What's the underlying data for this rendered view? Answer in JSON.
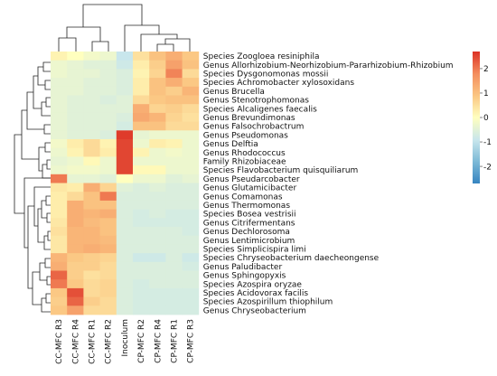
{
  "chart_data": {
    "type": "heatmap",
    "rows": [
      "Species Zoogloea resiniphila",
      "Genus Allorhizobium-Neorhizobium-Pararhizobium-Rhizobium",
      "Species Dysgonomonas mossii",
      "Species Achromobacter xylosoxidans",
      "Genus Brucella",
      "Genus Stenotrophomonas",
      "Species Alcaligenes faecalis",
      "Genus Brevundimonas",
      "Genus Falsochrobactrum",
      "Genus Pseudomonas",
      "Genus Delftia",
      "Genus Rhodococcus",
      "Family Rhizobiaceae",
      "Species Flavobacterium quisquiliarum",
      "Genus Pseudarcobacter",
      "Genus Glutamicibacter",
      "Genus Comamonas",
      "Genus Thermomonas",
      "Species Bosea vestrisii",
      "Genus Citrifermentans",
      "Genus Dechlorosoma",
      "Genus Lentimicrobium",
      "Species Simplicispira limi",
      "Species Chryseobacterium daecheongense",
      "Genus Paludibacter",
      "Genus Sphingopyxis",
      "Species Azospira oryzae",
      "Species Acidovorax facilis",
      "Species Azospirillum thiophilum",
      "Genus Chryseobacterium"
    ],
    "columns": [
      "CC-MFC R3",
      "CC-MFC R4",
      "CC-MFC R1",
      "CC-MFC R2",
      "Inoculum",
      "CP-MFC R2",
      "CP-MFC R4",
      "CP-MFC R1",
      "CP-MFC R3"
    ],
    "values": [
      [
        0.2,
        0.0,
        -0.2,
        -0.3,
        -0.9,
        0.5,
        1.0,
        1.3,
        0.9
      ],
      [
        -0.3,
        -0.4,
        -0.5,
        -0.5,
        -0.8,
        0.3,
        0.8,
        1.5,
        1.0
      ],
      [
        -0.3,
        -0.4,
        -0.4,
        -0.5,
        -0.6,
        0.2,
        0.7,
        1.9,
        0.6
      ],
      [
        -0.4,
        -0.4,
        -0.5,
        -0.5,
        -0.6,
        0.3,
        1.0,
        1.3,
        0.9
      ],
      [
        -0.4,
        -0.4,
        -0.5,
        -0.5,
        -0.6,
        0.3,
        1.0,
        0.8,
        1.2
      ],
      [
        -0.4,
        -0.5,
        -0.5,
        -0.6,
        -0.5,
        0.6,
        0.9,
        1.0,
        1.0
      ],
      [
        -0.4,
        -0.5,
        -0.5,
        -0.5,
        -0.5,
        1.3,
        0.7,
        0.8,
        0.6
      ],
      [
        -0.4,
        -0.5,
        -0.5,
        -0.5,
        -0.6,
        1.4,
        1.2,
        0.7,
        0.5
      ],
      [
        -0.4,
        -0.5,
        -0.5,
        -0.5,
        -0.7,
        1.0,
        1.0,
        0.6,
        0.6
      ],
      [
        -0.4,
        -0.5,
        -0.5,
        -0.6,
        2.6,
        -0.4,
        -0.3,
        -0.3,
        -0.3
      ],
      [
        -0.2,
        0.3,
        0.6,
        0.2,
        2.5,
        -0.3,
        0.3,
        0.2,
        -0.3
      ],
      [
        -0.3,
        0.2,
        0.6,
        0.3,
        2.5,
        0.2,
        -0.3,
        -0.2,
        -0.3
      ],
      [
        -0.4,
        -0.3,
        0.1,
        -0.3,
        2.5,
        -0.3,
        -0.3,
        -0.3,
        -0.3
      ],
      [
        -0.3,
        -0.2,
        -0.2,
        -0.3,
        2.5,
        0.1,
        0.1,
        -0.3,
        -0.3
      ],
      [
        2.0,
        -0.4,
        -0.4,
        -0.5,
        0.0,
        -0.3,
        -0.3,
        -0.5,
        -0.4
      ],
      [
        0.4,
        0.3,
        1.3,
        0.7,
        -0.5,
        -0.6,
        -0.5,
        -0.6,
        -0.6
      ],
      [
        0.3,
        0.6,
        1.0,
        2.0,
        -0.6,
        -0.6,
        -0.6,
        -0.6,
        -0.6
      ],
      [
        0.3,
        1.3,
        1.0,
        1.0,
        -0.6,
        -0.6,
        -0.6,
        -0.6,
        -0.6
      ],
      [
        0.3,
        1.3,
        1.2,
        1.3,
        -0.6,
        -0.7,
        -0.6,
        -0.7,
        -0.7
      ],
      [
        0.4,
        1.3,
        1.1,
        1.0,
        -0.6,
        -0.7,
        -0.7,
        -0.7,
        -0.7
      ],
      [
        0.5,
        1.2,
        1.2,
        1.0,
        -0.6,
        -0.6,
        -0.6,
        -0.6,
        -0.7
      ],
      [
        0.4,
        1.2,
        1.2,
        1.1,
        -0.6,
        -0.6,
        -0.6,
        -0.6,
        -0.6
      ],
      [
        0.4,
        1.2,
        1.3,
        1.2,
        -0.6,
        -0.6,
        -0.6,
        -0.6,
        -0.6
      ],
      [
        1.2,
        0.9,
        0.8,
        0.7,
        -0.6,
        -0.8,
        -0.8,
        -0.6,
        -0.8
      ],
      [
        1.3,
        0.8,
        0.8,
        0.6,
        -0.6,
        -0.6,
        -0.6,
        -0.6,
        -0.7
      ],
      [
        2.2,
        0.8,
        0.5,
        0.6,
        -0.6,
        -0.6,
        -0.6,
        -0.6,
        -0.6
      ],
      [
        2.0,
        0.9,
        0.6,
        0.7,
        -0.6,
        -0.7,
        -0.6,
        -0.6,
        -0.6
      ],
      [
        0.9,
        2.4,
        0.6,
        0.7,
        -0.6,
        -0.7,
        -0.7,
        -0.7,
        -0.7
      ],
      [
        0.8,
        2.2,
        0.8,
        0.6,
        -0.6,
        -0.7,
        -0.7,
        -0.7,
        -0.7
      ],
      [
        0.9,
        1.5,
        0.6,
        0.6,
        -0.6,
        -0.7,
        -0.7,
        -0.7,
        -0.7
      ]
    ],
    "color_scale": {
      "min": -2.7,
      "max": 2.7,
      "ticks": [
        2,
        1,
        0,
        -1,
        -2
      ],
      "tick_labels": [
        "2",
        "1",
        "0",
        "-1",
        "-2"
      ],
      "colors": [
        "#3684c0",
        "#7ab8d6",
        "#c8e6ec",
        "#ffffbf",
        "#fbc884",
        "#f48e5e",
        "#dc3125"
      ]
    }
  }
}
